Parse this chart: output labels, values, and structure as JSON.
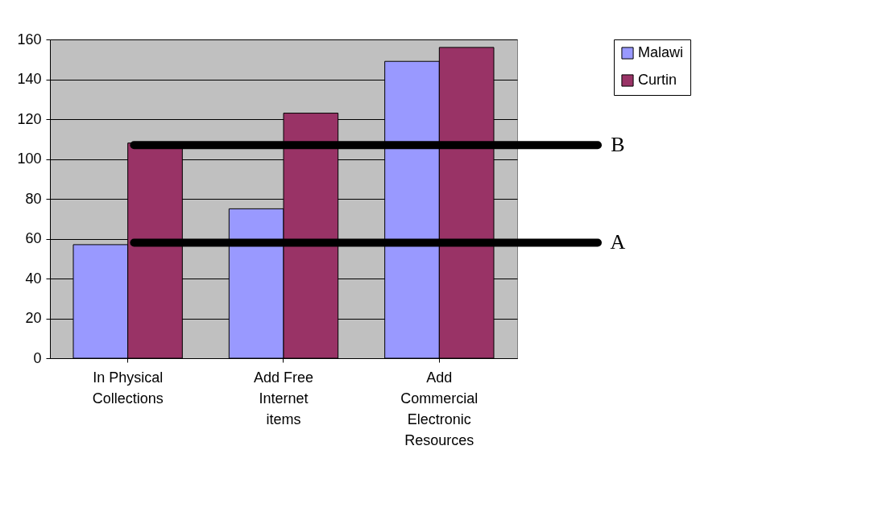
{
  "chart_data": {
    "type": "bar",
    "categories": [
      "In Physical Collections",
      "Add Free Internet items",
      "Add Commercial Electronic Resources"
    ],
    "series": [
      {
        "name": "Malawi",
        "color": "#9999ff",
        "values": [
          57,
          75,
          149
        ]
      },
      {
        "name": "Curtin",
        "color": "#993366",
        "values": [
          108,
          123,
          156
        ]
      }
    ],
    "ylim": [
      0,
      160
    ],
    "yticks": [
      0,
      20,
      40,
      60,
      80,
      100,
      120,
      140,
      160
    ],
    "grid": "y",
    "legend": "right",
    "ref_lines": [
      {
        "axis": "y",
        "value": 58,
        "label": "A"
      },
      {
        "axis": "y",
        "value": 107,
        "label": "B"
      }
    ]
  }
}
